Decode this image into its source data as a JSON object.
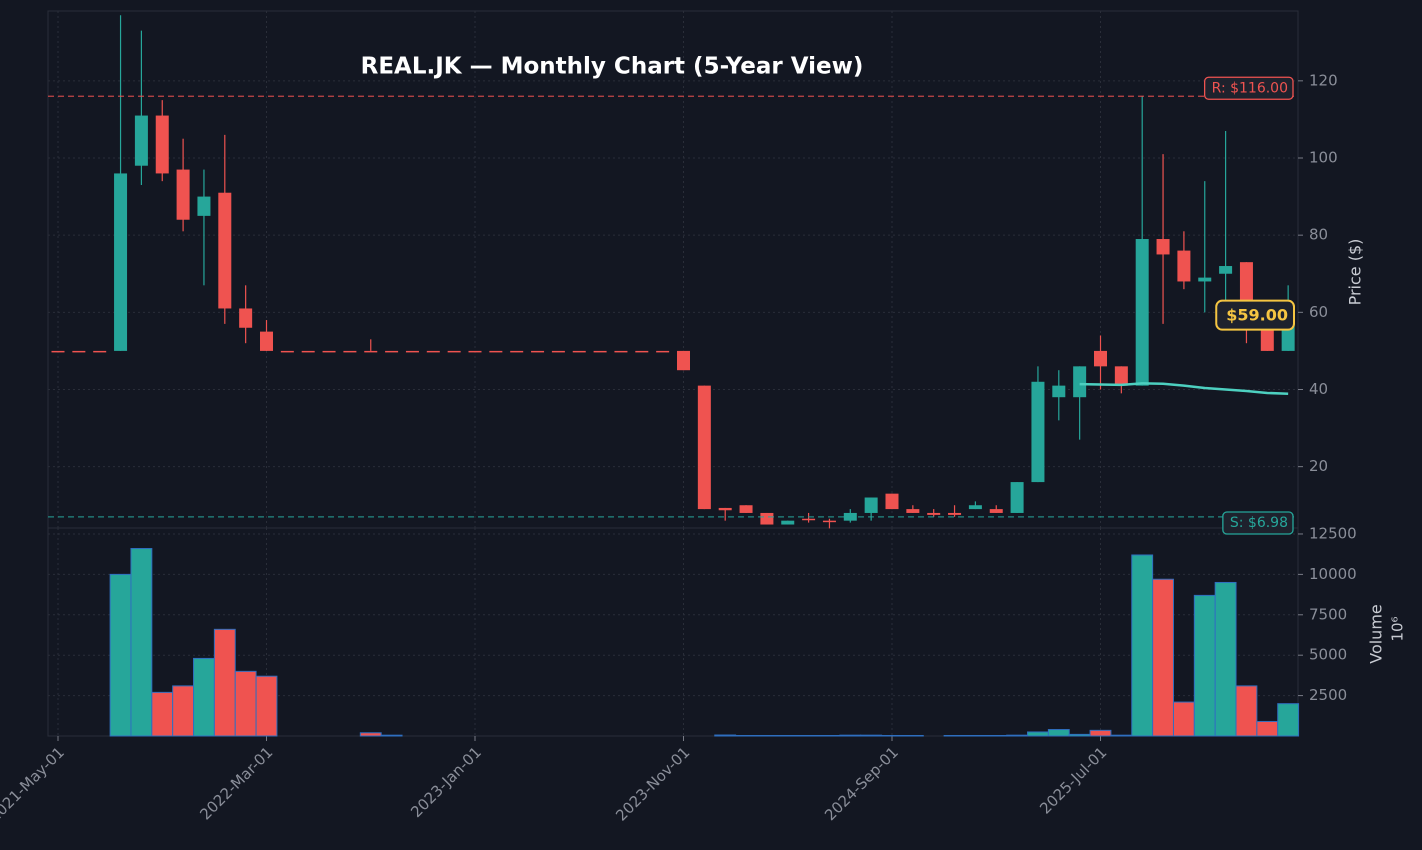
{
  "chart_data": {
    "type": "candlestick",
    "title": "REAL.JK — Monthly Chart (5-Year View)",
    "x": [
      "2021-May-01",
      "2021-Jun-01",
      "2021-Jul-01",
      "2021-Aug-01",
      "2021-Sep-01",
      "2021-Oct-01",
      "2021-Nov-01",
      "2021-Dec-01",
      "2022-Jan-01",
      "2022-Feb-01",
      "2022-Mar-01",
      "2022-Apr-01",
      "2022-May-01",
      "2022-Jun-01",
      "2022-Jul-01",
      "2022-Aug-01",
      "2022-Sep-01",
      "2022-Oct-01",
      "2022-Nov-01",
      "2022-Dec-01",
      "2023-Jan-01",
      "2023-Feb-01",
      "2023-Mar-01",
      "2023-Apr-01",
      "2023-May-01",
      "2023-Jun-01",
      "2023-Jul-01",
      "2023-Aug-01",
      "2023-Sep-01",
      "2023-Oct-01",
      "2023-Nov-01",
      "2023-Dec-01",
      "2024-Jan-01",
      "2024-Feb-01",
      "2024-Mar-01",
      "2024-Apr-01",
      "2024-May-01",
      "2024-Jun-01",
      "2024-Jul-01",
      "2024-Aug-01",
      "2024-Sep-01",
      "2024-Oct-01",
      "2024-Nov-01",
      "2024-Dec-01",
      "2025-Jan-01",
      "2025-Feb-01",
      "2025-Mar-01",
      "2025-Apr-01",
      "2025-May-01",
      "2025-Jun-01",
      "2025-Jul-01",
      "2025-Aug-01",
      "2025-Sep-01",
      "2025-Oct-01",
      "2025-Nov-01",
      "2025-Dec-01",
      "2026-Jan-01",
      "2026-Feb-01",
      "2026-Mar-01",
      "2026-Apr-01"
    ],
    "open": [
      50,
      50,
      50,
      50,
      98,
      111,
      97,
      85,
      91,
      61,
      55,
      50,
      50,
      50,
      50,
      50,
      50,
      50,
      50,
      50,
      50,
      50,
      50,
      50,
      50,
      50,
      50,
      50,
      50,
      50,
      50,
      41,
      9.3,
      10,
      8,
      5,
      6.5,
      6,
      6,
      8,
      13,
      9,
      8,
      8,
      9,
      9,
      8,
      16,
      38,
      38,
      50,
      46,
      41,
      79,
      76,
      68,
      70,
      73,
      59,
      50
    ],
    "high": [
      50,
      50,
      50,
      137,
      133,
      115,
      105,
      97,
      106,
      67,
      58,
      50,
      50,
      50,
      50,
      53,
      50,
      50,
      50,
      50,
      50,
      50,
      50,
      50,
      50,
      50,
      50,
      50,
      50,
      50,
      50,
      41,
      9.3,
      10,
      8,
      6,
      8,
      6.5,
      9,
      12,
      13,
      10,
      9,
      10,
      11,
      10,
      16,
      46,
      45,
      46,
      54,
      46,
      116,
      101,
      81,
      94,
      107,
      73,
      59,
      67
    ],
    "low": [
      50,
      50,
      50,
      50,
      93,
      94,
      81,
      67,
      57,
      52,
      50,
      50,
      50,
      50,
      50,
      50,
      50,
      50,
      50,
      50,
      50,
      50,
      50,
      50,
      50,
      50,
      50,
      50,
      50,
      50,
      45,
      9,
      6,
      8,
      5,
      5,
      5.5,
      4,
      5.5,
      6,
      9,
      8,
      7,
      7,
      9,
      8,
      8,
      16,
      32,
      27,
      40,
      39,
      41,
      57,
      66,
      60,
      61,
      52,
      50,
      50
    ],
    "close": [
      50,
      50,
      50,
      96,
      111,
      96,
      84,
      90,
      61,
      56,
      50,
      50,
      50,
      50,
      50,
      50,
      50,
      50,
      50,
      50,
      50,
      50,
      50,
      50,
      50,
      50,
      50,
      50,
      50,
      50,
      45,
      9,
      8.7,
      8,
      5,
      6,
      6.5,
      6,
      8,
      12,
      9,
      8,
      7.5,
      7.5,
      10,
      8,
      16,
      42,
      41,
      46,
      46,
      41,
      79,
      75,
      68,
      69,
      72,
      58,
      50,
      59
    ],
    "volume": [
      0,
      0,
      0,
      10000,
      11600,
      2700,
      3100,
      4800,
      6600,
      4000,
      3700,
      0,
      0,
      0,
      0,
      200,
      50,
      0,
      0,
      0,
      0,
      0,
      0,
      0,
      0,
      0,
      0,
      0,
      0,
      0,
      0,
      0,
      60,
      30,
      30,
      30,
      30,
      30,
      50,
      50,
      30,
      30,
      0,
      30,
      30,
      30,
      50,
      250,
      400,
      100,
      350,
      50,
      11200,
      9700,
      2100,
      8700,
      9500,
      3100,
      900,
      2000
    ],
    "ma": {
      "color": "#4dd0c0",
      "values": [
        null,
        null,
        null,
        null,
        null,
        null,
        null,
        null,
        null,
        null,
        null,
        null,
        null,
        null,
        null,
        null,
        null,
        null,
        null,
        null,
        null,
        null,
        null,
        null,
        null,
        null,
        null,
        null,
        null,
        null,
        null,
        null,
        null,
        null,
        null,
        null,
        null,
        null,
        null,
        null,
        null,
        null,
        null,
        null,
        null,
        null,
        null,
        null,
        null,
        41.4,
        41.3,
        41.2,
        41.6,
        41.5,
        41.0,
        40.4,
        40.0,
        39.6,
        39.1,
        38.9
      ]
    },
    "up_color": "#26a69a",
    "down_color": "#ef5350",
    "volume_edge_color": "#2f6fc0",
    "ylim": [
      4.1,
      138.1
    ],
    "yticks": [
      20,
      40,
      60,
      80,
      100,
      120
    ],
    "y_label": "Price ($)",
    "volume_ylim": [
      0,
      12870
    ],
    "volume_yticks": [
      2500,
      5000,
      7500,
      10000,
      12500
    ],
    "volume_label": "Volume",
    "volume_scale": "10⁶",
    "xticks": [
      "2021-May-01",
      "2022-Mar-01",
      "2023-Jan-01",
      "2023-Nov-01",
      "2024-Sep-01",
      "2025-Jul-01"
    ],
    "resistance": {
      "value": 116,
      "label": "R: $116.00",
      "color": "#ef5350"
    },
    "support": {
      "value": 6.98,
      "label": "S: $6.98",
      "color": "#26a69a"
    },
    "last_price": {
      "value": 59,
      "label": "$59.00",
      "color": "#f5c542"
    },
    "grid": true
  }
}
